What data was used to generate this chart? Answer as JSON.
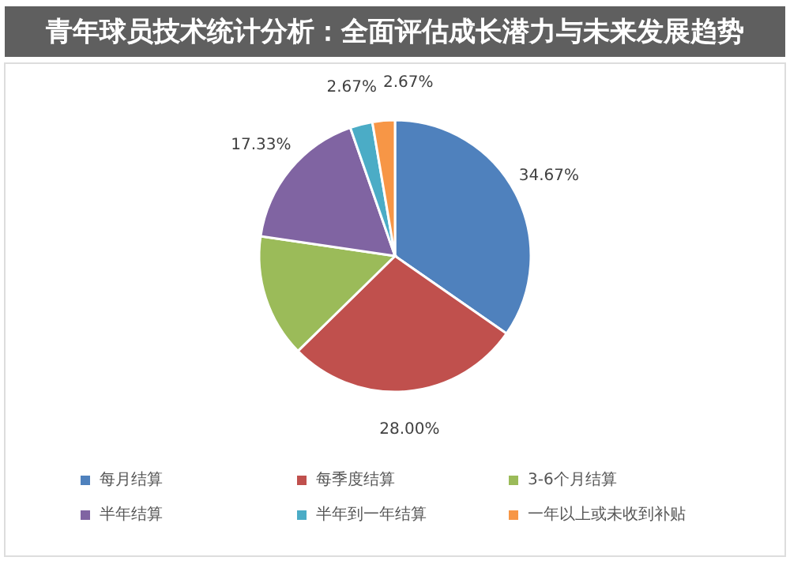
{
  "chart_data": {
    "type": "pie",
    "title": "青年球员技术统计分析：全面评估成长潜力与未来发展趋势",
    "categories": [
      "每月结算",
      "每季度结算",
      "3-6个月结算",
      "半年结算",
      "半年到一年结算",
      "一年以上或未收到补贴"
    ],
    "values": [
      34.67,
      28.0,
      14.66,
      17.33,
      2.67,
      2.67
    ],
    "value_labels": [
      "34.67%",
      "28.00%",
      null,
      "17.33%",
      "2.67%",
      "2.67%"
    ],
    "colors": [
      "#4f81bd",
      "#c0504d",
      "#9bbb59",
      "#8064a2",
      "#4bacc6",
      "#f79646"
    ],
    "legend": "bottom"
  }
}
